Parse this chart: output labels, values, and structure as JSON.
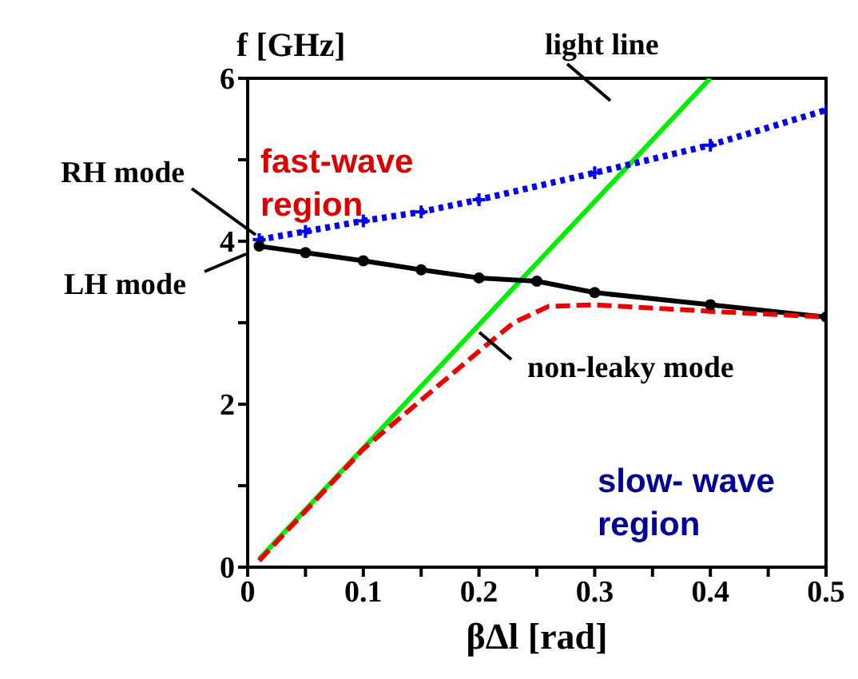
{
  "chart_data": {
    "type": "line",
    "xlabel": "βΔl [rad]",
    "ylabel": "f [GHz]",
    "xlim": [
      0,
      0.5
    ],
    "xticks": [
      0,
      {
        "value": 0.05,
        "label": null
      },
      0.1,
      {
        "value": 0.15,
        "label": null
      },
      0.2,
      {
        "value": 0.25,
        "label": null
      },
      0.3,
      {
        "value": 0.35,
        "label": null
      },
      0.4,
      {
        "value": 0.45,
        "label": null
      },
      0.5
    ],
    "ylim": [
      0,
      6
    ],
    "yticks": [
      0,
      {
        "value": 1,
        "label": null
      },
      2,
      {
        "value": 3,
        "label": null
      },
      4,
      {
        "value": 5,
        "label": null
      },
      6
    ],
    "series": [
      {
        "name": "light line",
        "color": "#00ee00",
        "x": [
          0.01,
          0.4
        ],
        "values": [
          0.1,
          6
        ],
        "line_style": "solid",
        "marker": "none"
      },
      {
        "name": "RH mode",
        "color": "#0000ee",
        "x": [
          0.01,
          0.05,
          0.1,
          0.15,
          0.2,
          0.3,
          0.4,
          0.5
        ],
        "values": [
          4.02,
          4.12,
          4.25,
          4.36,
          4.51,
          4.84,
          5.18,
          5.61
        ],
        "line_style": "dotted",
        "marker": "cross"
      },
      {
        "name": "LH mode",
        "color": "#000000",
        "x": [
          0.01,
          0.05,
          0.1,
          0.15,
          0.2,
          0.25,
          0.3,
          0.4,
          0.5
        ],
        "values": [
          3.94,
          3.86,
          3.76,
          3.65,
          3.55,
          3.51,
          3.37,
          3.22,
          3.07
        ],
        "line_style": "solid",
        "marker": "circle"
      },
      {
        "name": "non-leaky mode",
        "color": "#ee0000",
        "x": [
          0.01,
          0.1,
          0.2,
          0.23,
          0.26,
          0.3,
          0.4,
          0.5
        ],
        "values": [
          0.08,
          1.45,
          2.65,
          3.0,
          3.2,
          3.22,
          3.14,
          3.07
        ],
        "line_style": "dashed",
        "marker": "none"
      }
    ],
    "annotations": [
      "fast-wave region",
      "slow- wave region"
    ]
  }
}
